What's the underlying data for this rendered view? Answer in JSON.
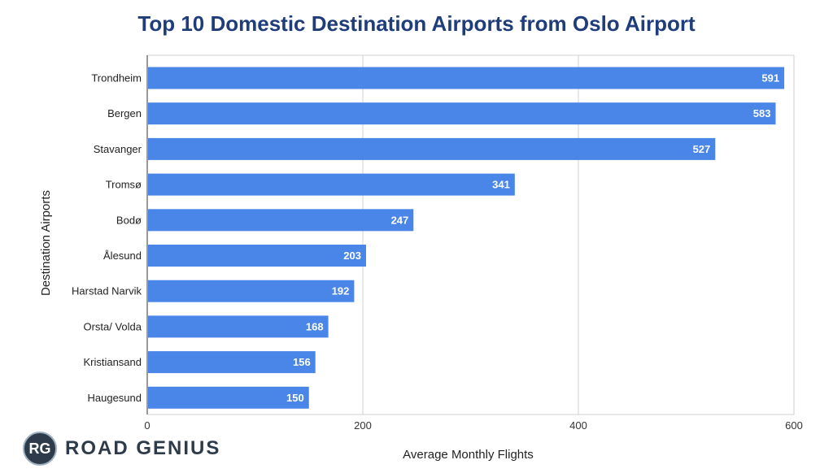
{
  "brand": {
    "initials": "RG",
    "name": "ROAD GENIUS",
    "color": "#2d3b4a"
  },
  "chart_data": {
    "type": "bar",
    "orientation": "horizontal",
    "title": "Top 10 Domestic Destination Airports from Oslo Airport",
    "xlabel": "Average Monthly Flights",
    "ylabel": "Destination Airports",
    "categories": [
      "Trondheim",
      "Bergen",
      "Stavanger",
      "Tromsø",
      "Bodø",
      "Ålesund",
      "Harstad Narvik",
      "Orsta/ Volda",
      "Kristiansand",
      "Haugesund"
    ],
    "values": [
      591,
      583,
      527,
      341,
      247,
      203,
      192,
      168,
      156,
      150
    ],
    "xlim": [
      0,
      600
    ],
    "xticks": [
      0,
      200,
      400,
      600
    ],
    "grid": true,
    "data_labels": true,
    "bar_color": "#4a86e8",
    "label_color": "#ffffff",
    "title_color": "#1f3d7a"
  }
}
